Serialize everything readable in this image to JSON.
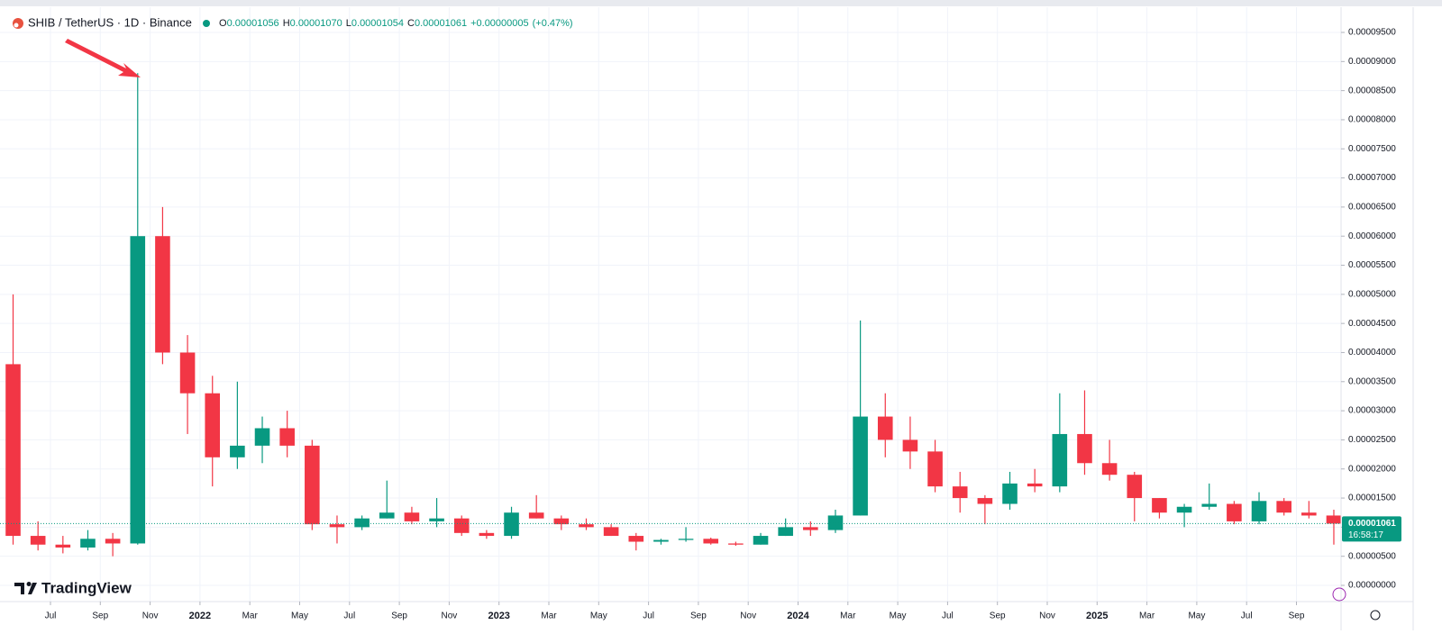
{
  "chart_data": {
    "type": "candlestick",
    "title": "SHIB / TetherUS · 1D · Binance",
    "legend": {
      "open_label": "O",
      "open": "0.00001056",
      "high_label": "H",
      "high": "0.00001070",
      "low_label": "L",
      "low": "0.00001054",
      "close_label": "C",
      "close": "0.00001061",
      "change": "+0.00000005",
      "change_pct": "(+0.47%)"
    },
    "last_price": {
      "value": 1.061e-05,
      "label": "0.00001061"
    },
    "countdown": "16:58:17",
    "brand": "TradingView",
    "up_color": "#089981",
    "down_color": "#f23645",
    "grid": true,
    "x": [
      "2021-05",
      "2021-06",
      "2021-07",
      "2021-08",
      "2021-09",
      "2021-10",
      "2021-11",
      "2021-12",
      "2022-01",
      "2022-02",
      "2022-03",
      "2022-04",
      "2022-05",
      "2022-06",
      "2022-07",
      "2022-08",
      "2022-09",
      "2022-10",
      "2022-11",
      "2022-12",
      "2023-01",
      "2023-02",
      "2023-03",
      "2023-04",
      "2023-05",
      "2023-06",
      "2023-07",
      "2023-08",
      "2023-09",
      "2023-10",
      "2023-11",
      "2023-12",
      "2024-01",
      "2024-02",
      "2024-03",
      "2024-04",
      "2024-05",
      "2024-06",
      "2024-07",
      "2024-08",
      "2024-09",
      "2024-10",
      "2024-11",
      "2024-12",
      "2025-01",
      "2025-02",
      "2025-03",
      "2025-04",
      "2025-05",
      "2025-06",
      "2025-07",
      "2025-08",
      "2025-09",
      "2025-10"
    ],
    "open": [
      3.8e-05,
      8.5e-06,
      7e-06,
      6.5e-06,
      8e-06,
      7.2e-06,
      6e-05,
      4e-05,
      3.3e-05,
      2.2e-05,
      2.4e-05,
      2.7e-05,
      2.4e-05,
      1.05e-05,
      1e-05,
      1.15e-05,
      1.25e-05,
      1.1e-05,
      1.15e-05,
      9e-06,
      8.5e-06,
      1.25e-05,
      1.15e-05,
      1.05e-05,
      1e-05,
      8.5e-06,
      7.5e-06,
      7.8e-06,
      8e-06,
      7.2e-06,
      7e-06,
      8.5e-06,
      1e-05,
      9.5e-06,
      1.2e-05,
      2.9e-05,
      2.5e-05,
      2.3e-05,
      1.7e-05,
      1.5e-05,
      1.4e-05,
      1.75e-05,
      1.7e-05,
      2.6e-05,
      2.1e-05,
      1.9e-05,
      1.5e-05,
      1.25e-05,
      1.35e-05,
      1.4e-05,
      1.1e-05,
      1.45e-05,
      1.25e-05,
      1.2e-05
    ],
    "high": [
      5e-05,
      1.1e-05,
      8.5e-06,
      9.5e-06,
      9e-06,
      8.8e-05,
      6.5e-05,
      4.3e-05,
      3.6e-05,
      3.5e-05,
      2.9e-05,
      3e-05,
      2.5e-05,
      1.2e-05,
      1.2e-05,
      1.8e-05,
      1.35e-05,
      1.5e-05,
      1.2e-05,
      9.5e-06,
      1.35e-05,
      1.55e-05,
      1.2e-05,
      1.15e-05,
      1.05e-05,
      9e-06,
      8e-06,
      1e-05,
      8.2e-06,
      7.5e-06,
      9e-06,
      1.15e-05,
      1.1e-05,
      1.3e-05,
      4.55e-05,
      3.3e-05,
      2.9e-05,
      2.5e-05,
      1.95e-05,
      1.55e-05,
      1.95e-05,
      2e-05,
      3.3e-05,
      3.35e-05,
      2.5e-05,
      1.95e-05,
      1.5e-05,
      1.4e-05,
      1.75e-05,
      1.45e-05,
      1.6e-05,
      1.5e-05,
      1.45e-05,
      1.3e-05
    ],
    "low": [
      7e-06,
      6e-06,
      5.5e-06,
      6e-06,
      5e-06,
      7e-06,
      3.8e-05,
      2.6e-05,
      1.7e-05,
      2e-05,
      2.1e-05,
      2.2e-05,
      9.5e-06,
      7.2e-06,
      9.5e-06,
      1.15e-05,
      1.05e-05,
      1e-05,
      8.5e-06,
      8e-06,
      8e-06,
      1.15e-05,
      9.5e-06,
      9.5e-06,
      8.5e-06,
      6e-06,
      7e-06,
      7.5e-06,
      7e-06,
      6.8e-06,
      7e-06,
      8.5e-06,
      8.5e-06,
      9e-06,
      1.2e-05,
      2.2e-05,
      2e-05,
      1.6e-05,
      1.25e-05,
      1.05e-05,
      1.3e-05,
      1.6e-05,
      1.6e-05,
      1.9e-05,
      1.8e-05,
      1.1e-05,
      1.15e-05,
      1e-05,
      1.3e-05,
      1.05e-05,
      1.05e-05,
      1.2e-05,
      1.15e-05,
      7e-06
    ],
    "close": [
      8.5e-06,
      7e-06,
      6.5e-06,
      8e-06,
      7.2e-06,
      6e-05,
      4e-05,
      3.3e-05,
      2.2e-05,
      2.4e-05,
      2.7e-05,
      2.4e-05,
      1.05e-05,
      1e-05,
      1.15e-05,
      1.25e-05,
      1.1e-05,
      1.15e-05,
      9e-06,
      8.5e-06,
      1.25e-05,
      1.15e-05,
      1.05e-05,
      1e-05,
      8.5e-06,
      7.5e-06,
      7.8e-06,
      8e-06,
      7.2e-06,
      7e-06,
      8.5e-06,
      1e-05,
      9.5e-06,
      1.2e-05,
      2.9e-05,
      2.5e-05,
      2.3e-05,
      1.7e-05,
      1.5e-05,
      1.4e-05,
      1.75e-05,
      1.7e-05,
      2.6e-05,
      2.1e-05,
      1.9e-05,
      1.5e-05,
      1.25e-05,
      1.35e-05,
      1.4e-05,
      1.1e-05,
      1.45e-05,
      1.25e-05,
      1.2e-05,
      1.061e-05
    ],
    "ylim": [
      0,
      9.5e-05
    ],
    "yticks": [
      {
        "value": 0,
        "label": "0.00000000"
      },
      {
        "value": 5e-06,
        "label": "0.00000500"
      },
      {
        "value": 1e-05,
        "label": "0.00001000"
      },
      {
        "value": 1.5e-05,
        "label": "0.00001500"
      },
      {
        "value": 2e-05,
        "label": "0.00002000"
      },
      {
        "value": 2.5e-05,
        "label": "0.00002500"
      },
      {
        "value": 3e-05,
        "label": "0.00003000"
      },
      {
        "value": 3.5e-05,
        "label": "0.00003500"
      },
      {
        "value": 4e-05,
        "label": "0.00004000"
      },
      {
        "value": 4.5e-05,
        "label": "0.00004500"
      },
      {
        "value": 5e-05,
        "label": "0.00005000"
      },
      {
        "value": 5.5e-05,
        "label": "0.00005500"
      },
      {
        "value": 6e-05,
        "label": "0.00006000"
      },
      {
        "value": 6.5e-05,
        "label": "0.00006500"
      },
      {
        "value": 7e-05,
        "label": "0.00007000"
      },
      {
        "value": 7.5e-05,
        "label": "0.00007500"
      },
      {
        "value": 8e-05,
        "label": "0.00008000"
      },
      {
        "value": 8.5e-05,
        "label": "0.00008500"
      },
      {
        "value": 9e-05,
        "label": "0.00009000"
      },
      {
        "value": 9.5e-05,
        "label": "0.00009500"
      }
    ],
    "xticks": [
      {
        "value": "2021-07",
        "label": "Jul"
      },
      {
        "value": "2021-09",
        "label": "Sep"
      },
      {
        "value": "2021-11",
        "label": "Nov"
      },
      {
        "value": "2022-01",
        "label": "2022"
      },
      {
        "value": "2022-03",
        "label": "Mar"
      },
      {
        "value": "2022-05",
        "label": "May"
      },
      {
        "value": "2022-07",
        "label": "Jul"
      },
      {
        "value": "2022-09",
        "label": "Sep"
      },
      {
        "value": "2022-11",
        "label": "Nov"
      },
      {
        "value": "2023-01",
        "label": "2023"
      },
      {
        "value": "2023-03",
        "label": "Mar"
      },
      {
        "value": "2023-05",
        "label": "May"
      },
      {
        "value": "2023-07",
        "label": "Jul"
      },
      {
        "value": "2023-09",
        "label": "Sep"
      },
      {
        "value": "2023-11",
        "label": "Nov"
      },
      {
        "value": "2024-01",
        "label": "2024"
      },
      {
        "value": "2024-03",
        "label": "Mar"
      },
      {
        "value": "2024-05",
        "label": "May"
      },
      {
        "value": "2024-07",
        "label": "Jul"
      },
      {
        "value": "2024-09",
        "label": "Sep"
      },
      {
        "value": "2024-11",
        "label": "Nov"
      },
      {
        "value": "2025-01",
        "label": "2025"
      },
      {
        "value": "2025-03",
        "label": "Mar"
      },
      {
        "value": "2025-05",
        "label": "May"
      },
      {
        "value": "2025-07",
        "label": "Jul"
      },
      {
        "value": "2025-09",
        "label": "Sep"
      }
    ]
  }
}
